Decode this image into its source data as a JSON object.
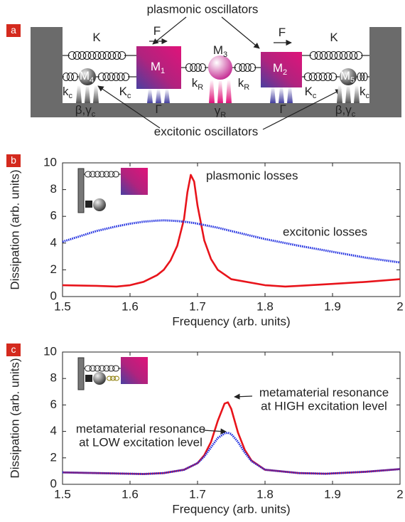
{
  "diagram": {
    "panel_label": "a",
    "top_label": "plasmonic oscillators",
    "bottom_label": "excitonic oscillators",
    "labels": [
      {
        "base": "K"
      },
      {
        "base": "K"
      },
      {
        "base": "F"
      },
      {
        "base": "F"
      },
      {
        "base": "M",
        "sub": "1"
      },
      {
        "base": "M",
        "sub": "2"
      },
      {
        "base": "M",
        "sub": "3"
      },
      {
        "base": "M",
        "sub": "4"
      },
      {
        "base": "M",
        "sub": "5"
      },
      {
        "base": "k",
        "sub": "c"
      },
      {
        "base": "K",
        "sub": "c"
      },
      {
        "base": "k",
        "sub": "R"
      },
      {
        "base": "k",
        "sub": "R"
      },
      {
        "base": "K",
        "sub": "c"
      },
      {
        "base": "k",
        "sub": "c"
      },
      {
        "base": "β,γ",
        "sub": "c"
      },
      {
        "base": "Γ"
      },
      {
        "base": "γ",
        "sub": "R"
      },
      {
        "base": "Γ"
      },
      {
        "base": "β,γ",
        "sub": "c"
      }
    ]
  },
  "chart_data": [
    {
      "type": "line",
      "panel_label": "b",
      "x_label": "Frequency (arb. units)",
      "y_label": "Dissipation (arb. units)",
      "x": [
        1.5,
        1.55,
        1.58,
        1.6,
        1.62,
        1.64,
        1.65,
        1.66,
        1.67,
        1.68,
        1.685,
        1.69,
        1.695,
        1.7,
        1.71,
        1.72,
        1.73,
        1.75,
        1.8,
        1.83,
        1.85,
        1.9,
        1.95,
        2.0
      ],
      "series": [
        {
          "color": "#e8141b",
          "linestyle": "solid",
          "values": [
            0.85,
            0.8,
            0.75,
            0.85,
            1.1,
            1.6,
            2.0,
            2.7,
            3.8,
            5.8,
            7.8,
            9.1,
            8.6,
            6.8,
            4.2,
            2.8,
            2.0,
            1.3,
            0.85,
            0.75,
            0.8,
            0.95,
            1.1,
            1.3
          ]
        },
        {
          "color": "#1f2ee0",
          "linestyle": "dotted",
          "values": [
            4.1,
            4.9,
            5.25,
            5.45,
            5.6,
            5.68,
            5.7,
            5.68,
            5.65,
            5.6,
            5.57,
            5.53,
            5.5,
            5.45,
            5.35,
            5.25,
            5.15,
            4.9,
            4.3,
            4.0,
            3.8,
            3.35,
            2.9,
            2.55
          ]
        }
      ],
      "annotations": [
        {
          "lines": [
            "plasmonic losses"
          ]
        },
        {
          "lines": [
            "excitonic losses"
          ]
        }
      ],
      "xlim": [
        1.5,
        2
      ],
      "ylim": [
        0,
        10
      ],
      "xticks": [
        1.5,
        1.6,
        1.7,
        1.8,
        1.9,
        2
      ],
      "yticks": [
        0,
        2,
        4,
        6,
        8,
        10
      ]
    },
    {
      "type": "line",
      "panel_label": "c",
      "x_label": "Frequency (arb. units)",
      "y_label": "Dissipation (arb. units)",
      "x": [
        1.5,
        1.55,
        1.6,
        1.62,
        1.65,
        1.68,
        1.7,
        1.71,
        1.72,
        1.73,
        1.74,
        1.745,
        1.75,
        1.76,
        1.77,
        1.78,
        1.8,
        1.85,
        1.89,
        1.95,
        2.0
      ],
      "series": [
        {
          "color": "#e8141b",
          "linestyle": "solid",
          "values": [
            0.9,
            0.85,
            0.8,
            0.78,
            0.85,
            1.1,
            1.6,
            2.2,
            3.2,
            4.8,
            6.1,
            6.2,
            5.7,
            3.9,
            2.6,
            1.8,
            1.1,
            0.85,
            0.8,
            0.95,
            1.15
          ]
        },
        {
          "color": "#1f2ee0",
          "linestyle": "dotted",
          "values": [
            0.9,
            0.85,
            0.8,
            0.78,
            0.85,
            1.1,
            1.6,
            2.1,
            2.8,
            3.5,
            3.85,
            3.9,
            3.8,
            3.2,
            2.4,
            1.75,
            1.1,
            0.85,
            0.8,
            0.95,
            1.15
          ]
        }
      ],
      "annotations": [
        {
          "lines": [
            "metamaterial resonance",
            "at HIGH excitation level"
          ]
        },
        {
          "lines": [
            "metamaterial resonance",
            "at LOW excitation level"
          ]
        }
      ],
      "xlim": [
        1.5,
        2
      ],
      "ylim": [
        0,
        10
      ],
      "xticks": [
        1.5,
        1.6,
        1.7,
        1.8,
        1.9,
        2
      ],
      "yticks": [
        0,
        2,
        4,
        6,
        8,
        10
      ]
    }
  ]
}
